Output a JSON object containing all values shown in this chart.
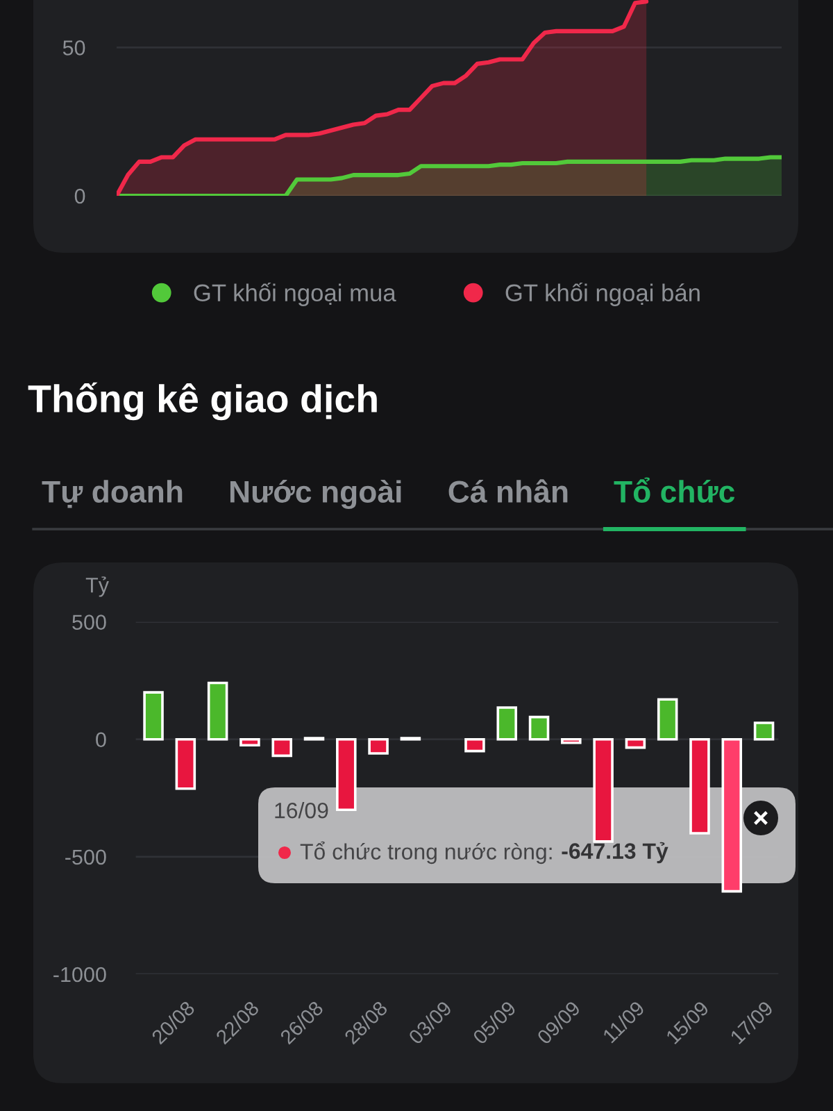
{
  "chart_data": [
    {
      "type": "area",
      "categories": [
        null,
        null,
        null,
        null,
        null,
        null,
        null,
        null,
        null,
        null,
        null,
        null,
        null,
        null,
        null,
        null,
        null,
        null,
        null,
        null,
        null,
        null,
        null,
        null,
        null,
        null,
        null,
        null,
        null,
        null,
        null,
        null,
        null,
        null,
        null,
        null,
        null,
        null,
        null,
        null,
        null,
        null,
        null,
        null,
        null,
        null,
        null,
        null,
        null,
        null,
        null,
        null,
        null,
        null,
        null,
        null,
        null,
        null,
        null,
        null
      ],
      "series": [
        {
          "name": "GT khối ngoại mua",
          "color": "#52c93a",
          "values": [
            0,
            0,
            0,
            0,
            0,
            0,
            0,
            0,
            0,
            0,
            0,
            0,
            0,
            0,
            0,
            0,
            5.5,
            5.5,
            5.5,
            5.5,
            6,
            7,
            7,
            7,
            7,
            7,
            7.5,
            10,
            10,
            10,
            10,
            10,
            10,
            10,
            10.5,
            10.5,
            11,
            11,
            11,
            11,
            11.5,
            11.5,
            11.5,
            11.5,
            11.5,
            11.5,
            11.5,
            11.5,
            11.5,
            11.5,
            11.5,
            12,
            12,
            12,
            12.5,
            12.5,
            12.5,
            12.5,
            13,
            13
          ]
        },
        {
          "name": "GT khối ngoại bán",
          "color": "#f0284a",
          "values": [
            0,
            7,
            11.5,
            11.5,
            13,
            13,
            17,
            19,
            19,
            19,
            19,
            19,
            19,
            19,
            19,
            20.5,
            20.5,
            20.5,
            21,
            22,
            23,
            24,
            24.5,
            27,
            27.5,
            29,
            29,
            33,
            37,
            38,
            38,
            40.5,
            44.5,
            45,
            46,
            46,
            46,
            51.5,
            55,
            55.5,
            55.5,
            55.5,
            55.5,
            55.5,
            55.5,
            57,
            65,
            65.5,
            null,
            null,
            null,
            null,
            null,
            null,
            null,
            null,
            null,
            null,
            null,
            null
          ]
        }
      ],
      "ylim": [
        0,
        66
      ],
      "yticks": [
        0,
        50
      ],
      "grid": "y",
      "legend": "bottom",
      "tick_labels": "y"
    },
    {
      "type": "bar",
      "title": "Thống kê giao dịch",
      "ylabel": "Tỷ",
      "categories": [
        null,
        "20/08",
        null,
        "22/08",
        null,
        "26/08",
        null,
        "28/08",
        null,
        "03/09",
        null,
        "05/09",
        null,
        "09/09",
        null,
        "11/09",
        null,
        "15/09",
        null,
        "17/09"
      ],
      "values": [
        200,
        -210,
        240,
        -25,
        -70,
        5,
        -300,
        -60,
        5,
        null,
        -50,
        135,
        95,
        -15,
        -435,
        -35,
        170,
        -400,
        -647.13,
        70
      ],
      "colors": [
        "#4bb82b",
        "#e8163f",
        "#4bb82b",
        "#e8163f",
        "#e8163f",
        "#e6e6e6",
        "#e8163f",
        "#e8163f",
        "#e6e6e6",
        "#e8163f",
        "#e8163f",
        "#4bb82b",
        "#4bb82b",
        "#e8163f",
        "#e8163f",
        "#e8163f",
        "#4bb82b",
        "#e8163f",
        "#ff3d6a",
        "#4bb82b"
      ],
      "ylim": [
        -1000,
        500
      ],
      "yticks": [
        -1000,
        -500,
        0,
        500
      ],
      "grid": "y",
      "annotations": [
        "Tự doanh",
        "Nước ngoài",
        "Cá nhân",
        "Tổ chức",
        "16/09",
        "Tổ chức trong nước ròng:",
        "-647.13 Tỷ"
      ]
    }
  ]
}
